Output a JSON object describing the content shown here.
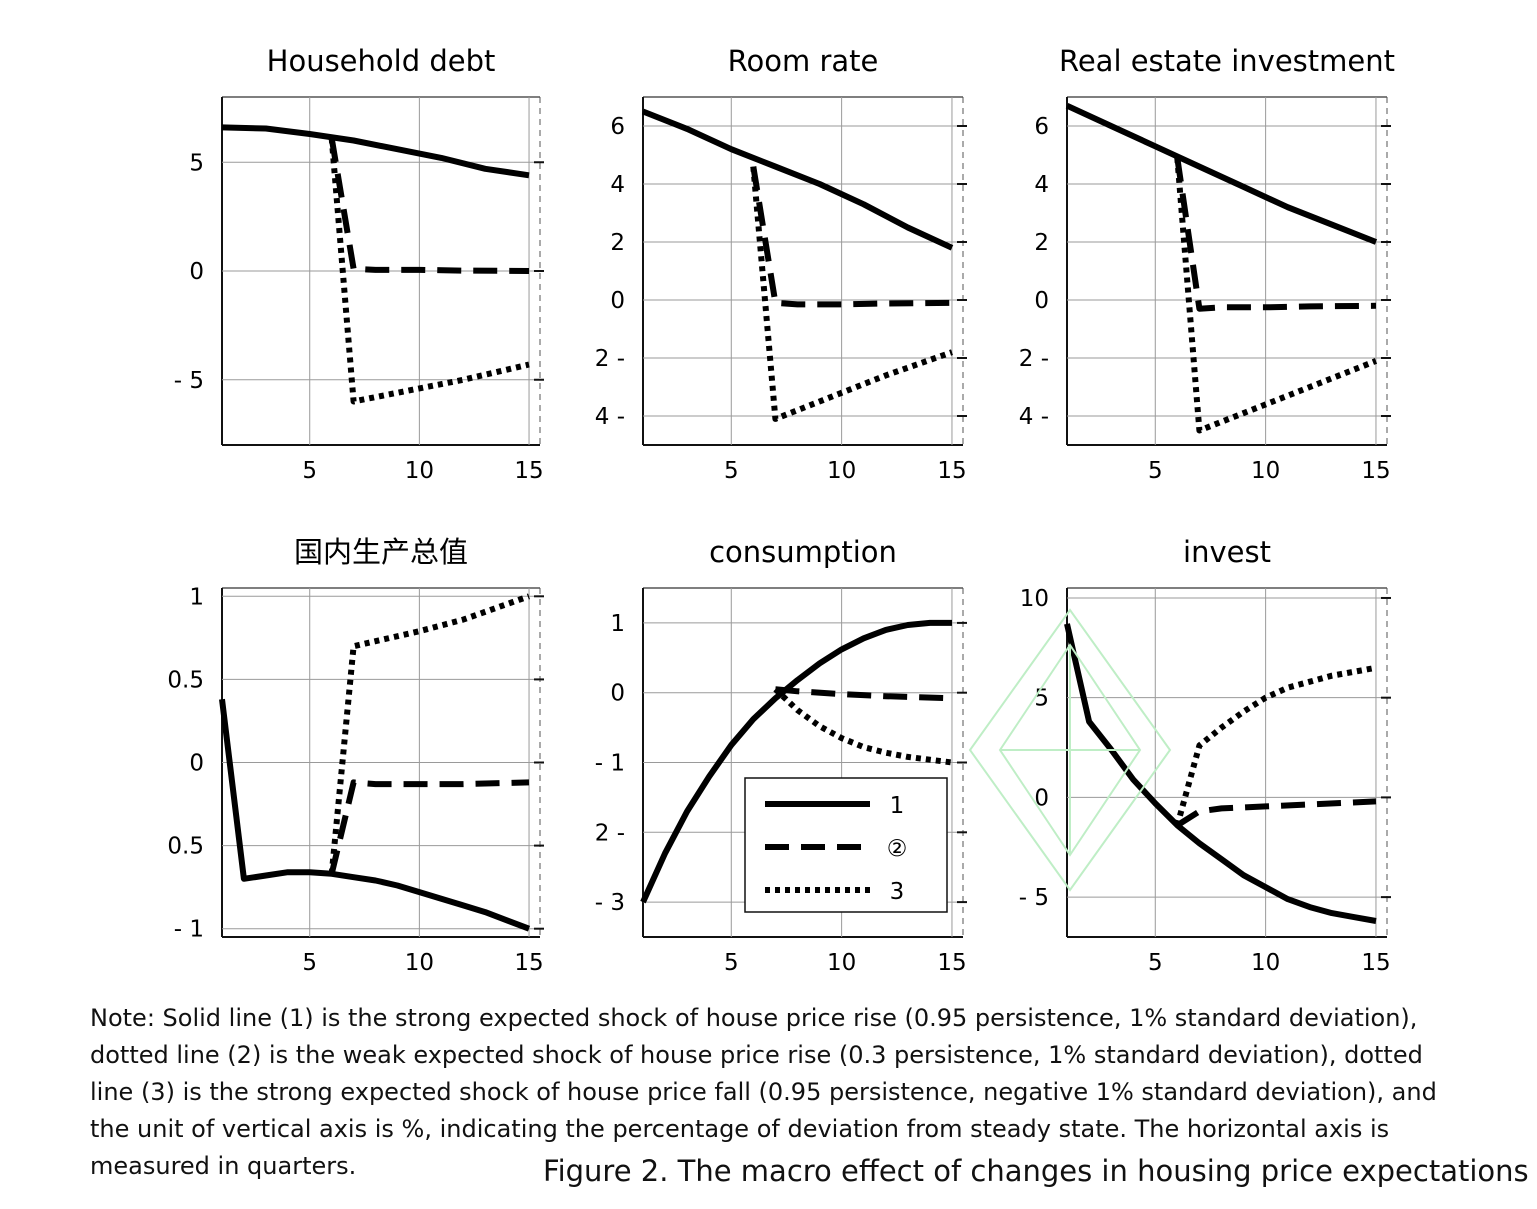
{
  "chart_data": [
    {
      "type": "line",
      "title": "Household debt",
      "x_ticks": [
        5,
        10,
        15
      ],
      "y_ticks": [
        {
          "value": 5,
          "label": "5"
        },
        {
          "value": 0,
          "label": "0"
        },
        {
          "value": -5,
          "label": "- 5"
        }
      ],
      "xlim": [
        1,
        15.5
      ],
      "ylim": [
        -8,
        8
      ],
      "series": [
        {
          "style": "solid",
          "x": [
            1,
            3,
            5,
            7,
            9,
            11,
            13,
            15
          ],
          "y": [
            6.6,
            6.55,
            6.3,
            6.0,
            5.6,
            5.2,
            4.7,
            4.4
          ]
        },
        {
          "style": "dashed",
          "x": [
            6,
            7,
            8,
            10,
            12,
            15
          ],
          "y": [
            6.1,
            0.1,
            0.05,
            0.05,
            0.02,
            0.0
          ]
        },
        {
          "style": "dotted",
          "x": [
            6,
            7,
            8,
            10,
            12,
            15
          ],
          "y": [
            6.1,
            -6.0,
            -5.8,
            -5.4,
            -5.0,
            -4.3
          ]
        }
      ]
    },
    {
      "type": "line",
      "title": "Room rate",
      "x_ticks": [
        5,
        10,
        15
      ],
      "y_ticks": [
        {
          "value": 6,
          "label": "6"
        },
        {
          "value": 4,
          "label": "4"
        },
        {
          "value": 2,
          "label": "2"
        },
        {
          "value": 0,
          "label": "0"
        },
        {
          "value": -2,
          "label": "2 -"
        },
        {
          "value": -4,
          "label": "4 -"
        }
      ],
      "xlim": [
        1,
        15.5
      ],
      "ylim": [
        -5,
        7
      ],
      "series": [
        {
          "style": "solid",
          "x": [
            1,
            3,
            5,
            7,
            9,
            11,
            13,
            15
          ],
          "y": [
            6.5,
            5.9,
            5.2,
            4.6,
            4.0,
            3.3,
            2.5,
            1.8
          ]
        },
        {
          "style": "dashed",
          "x": [
            6,
            7,
            8,
            10,
            12,
            15
          ],
          "y": [
            4.6,
            -0.1,
            -0.15,
            -0.15,
            -0.12,
            -0.1
          ]
        },
        {
          "style": "dotted",
          "x": [
            6,
            7,
            8,
            10,
            12,
            15
          ],
          "y": [
            4.6,
            -4.1,
            -3.8,
            -3.2,
            -2.6,
            -1.8
          ]
        }
      ]
    },
    {
      "type": "line",
      "title": "Real estate investment",
      "x_ticks": [
        5,
        10,
        15
      ],
      "y_ticks": [
        {
          "value": 6,
          "label": "6"
        },
        {
          "value": 4,
          "label": "4"
        },
        {
          "value": 2,
          "label": "2"
        },
        {
          "value": 0,
          "label": "0"
        },
        {
          "value": -2,
          "label": "2 -"
        },
        {
          "value": -4,
          "label": "4 -"
        }
      ],
      "xlim": [
        1,
        15.5
      ],
      "ylim": [
        -5,
        7
      ],
      "series": [
        {
          "style": "solid",
          "x": [
            1,
            3,
            5,
            7,
            9,
            11,
            13,
            15
          ],
          "y": [
            6.7,
            6.0,
            5.3,
            4.6,
            3.9,
            3.2,
            2.6,
            2.0
          ]
        },
        {
          "style": "dashed",
          "x": [
            6,
            7,
            8,
            10,
            12,
            15
          ],
          "y": [
            4.9,
            -0.3,
            -0.25,
            -0.25,
            -0.22,
            -0.2
          ]
        },
        {
          "style": "dotted",
          "x": [
            6,
            7,
            8,
            10,
            12,
            15
          ],
          "y": [
            4.9,
            -4.5,
            -4.2,
            -3.6,
            -3.0,
            -2.1
          ]
        }
      ]
    },
    {
      "type": "line",
      "title": "国内生产总值",
      "x_ticks": [
        5,
        10,
        15
      ],
      "y_ticks": [
        {
          "value": 1,
          "label": "1"
        },
        {
          "value": 0.5,
          "label": "0.5"
        },
        {
          "value": 0,
          "label": "0"
        },
        {
          "value": -0.5,
          "label": "0.5"
        },
        {
          "value": -1,
          "label": "- 1"
        }
      ],
      "xlim": [
        1,
        15.5
      ],
      "ylim": [
        -1.05,
        1.05
      ],
      "series": [
        {
          "style": "solid",
          "x": [
            1,
            2,
            3,
            4,
            5,
            6,
            7,
            8,
            9,
            10,
            11,
            12,
            13,
            14,
            15
          ],
          "y": [
            0.38,
            -0.7,
            -0.68,
            -0.66,
            -0.66,
            -0.67,
            -0.69,
            -0.71,
            -0.74,
            -0.78,
            -0.82,
            -0.86,
            -0.9,
            -0.95,
            -1.0
          ]
        },
        {
          "style": "dashed",
          "x": [
            6,
            7,
            8,
            10,
            12,
            15
          ],
          "y": [
            -0.67,
            -0.12,
            -0.13,
            -0.13,
            -0.13,
            -0.12
          ]
        },
        {
          "style": "dotted",
          "x": [
            6,
            7,
            8,
            10,
            12,
            15
          ],
          "y": [
            -0.67,
            0.7,
            0.73,
            0.79,
            0.86,
            1.0
          ]
        }
      ]
    },
    {
      "type": "line",
      "title": "consumption",
      "x_ticks": [
        5,
        10,
        15
      ],
      "y_ticks": [
        {
          "value": 1,
          "label": "1"
        },
        {
          "value": 0,
          "label": "0"
        },
        {
          "value": -1,
          "label": "- 1"
        },
        {
          "value": -2,
          "label": "2 -"
        },
        {
          "value": -3,
          "label": "- 3"
        }
      ],
      "xlim": [
        1,
        15.5
      ],
      "ylim": [
        -3.5,
        1.5
      ],
      "series": [
        {
          "style": "solid",
          "x": [
            1,
            2,
            3,
            4,
            5,
            6,
            7,
            8,
            9,
            10,
            11,
            12,
            13,
            14,
            15
          ],
          "y": [
            -3.0,
            -2.3,
            -1.7,
            -1.2,
            -0.75,
            -0.38,
            -0.08,
            0.18,
            0.42,
            0.62,
            0.78,
            0.9,
            0.97,
            1.0,
            1.0
          ]
        },
        {
          "style": "dashed",
          "x": [
            7,
            8,
            10,
            12,
            15
          ],
          "y": [
            0.05,
            0.02,
            -0.02,
            -0.05,
            -0.08
          ]
        },
        {
          "style": "dotted",
          "x": [
            7,
            8,
            9,
            10,
            11,
            12,
            13,
            14,
            15
          ],
          "y": [
            0.05,
            -0.25,
            -0.48,
            -0.65,
            -0.78,
            -0.86,
            -0.92,
            -0.96,
            -1.0
          ]
        }
      ],
      "legend": {
        "position": "bottom-right",
        "entries": [
          {
            "style": "solid",
            "label": "1"
          },
          {
            "style": "dashed",
            "label": "②"
          },
          {
            "style": "dotted",
            "label": "3"
          }
        ]
      }
    },
    {
      "type": "line",
      "title": "invest",
      "x_ticks": [
        5,
        10,
        15
      ],
      "y_ticks": [
        {
          "value": 10,
          "label": "10"
        },
        {
          "value": 5,
          "label": "5"
        },
        {
          "value": 0,
          "label": "0"
        },
        {
          "value": -5,
          "label": "- 5"
        }
      ],
      "xlim": [
        1,
        15.5
      ],
      "ylim": [
        -7,
        10.5
      ],
      "series": [
        {
          "style": "solid",
          "x": [
            1,
            2,
            3,
            4,
            5,
            6,
            7,
            8,
            9,
            10,
            11,
            12,
            13,
            14,
            15
          ],
          "y": [
            8.7,
            3.8,
            2.4,
            0.9,
            -0.3,
            -1.4,
            -2.3,
            -3.1,
            -3.9,
            -4.5,
            -5.1,
            -5.5,
            -5.8,
            -6.0,
            -6.2
          ]
        },
        {
          "style": "dashed",
          "x": [
            6,
            7,
            8,
            10,
            12,
            15
          ],
          "y": [
            -1.4,
            -0.7,
            -0.55,
            -0.45,
            -0.35,
            -0.2
          ]
        },
        {
          "style": "dotted",
          "x": [
            6,
            7,
            8,
            9,
            10,
            11,
            12,
            13,
            14,
            15
          ],
          "y": [
            -1.4,
            2.6,
            3.5,
            4.3,
            5.0,
            5.5,
            5.8,
            6.1,
            6.3,
            6.5
          ]
        }
      ]
    }
  ],
  "note": "Note: Solid line (1) is the strong expected shock of house price rise (0.95 persistence, 1% standard deviation), dotted line (2) is the weak expected shock of house price rise (0.3 persistence, 1% standard deviation), dotted line (3) is the strong expected shock of house price fall (0.95 persistence, negative 1% standard deviation), and the unit of vertical axis is %, indicating the percentage of deviation from steady state. The horizontal axis is measured in quarters.",
  "caption": "Figure 2. The macro effect of changes in housing price expectations",
  "colors": {
    "line": "#000000",
    "grid": "#9a9a9a",
    "watermark": "#bfeec6"
  }
}
